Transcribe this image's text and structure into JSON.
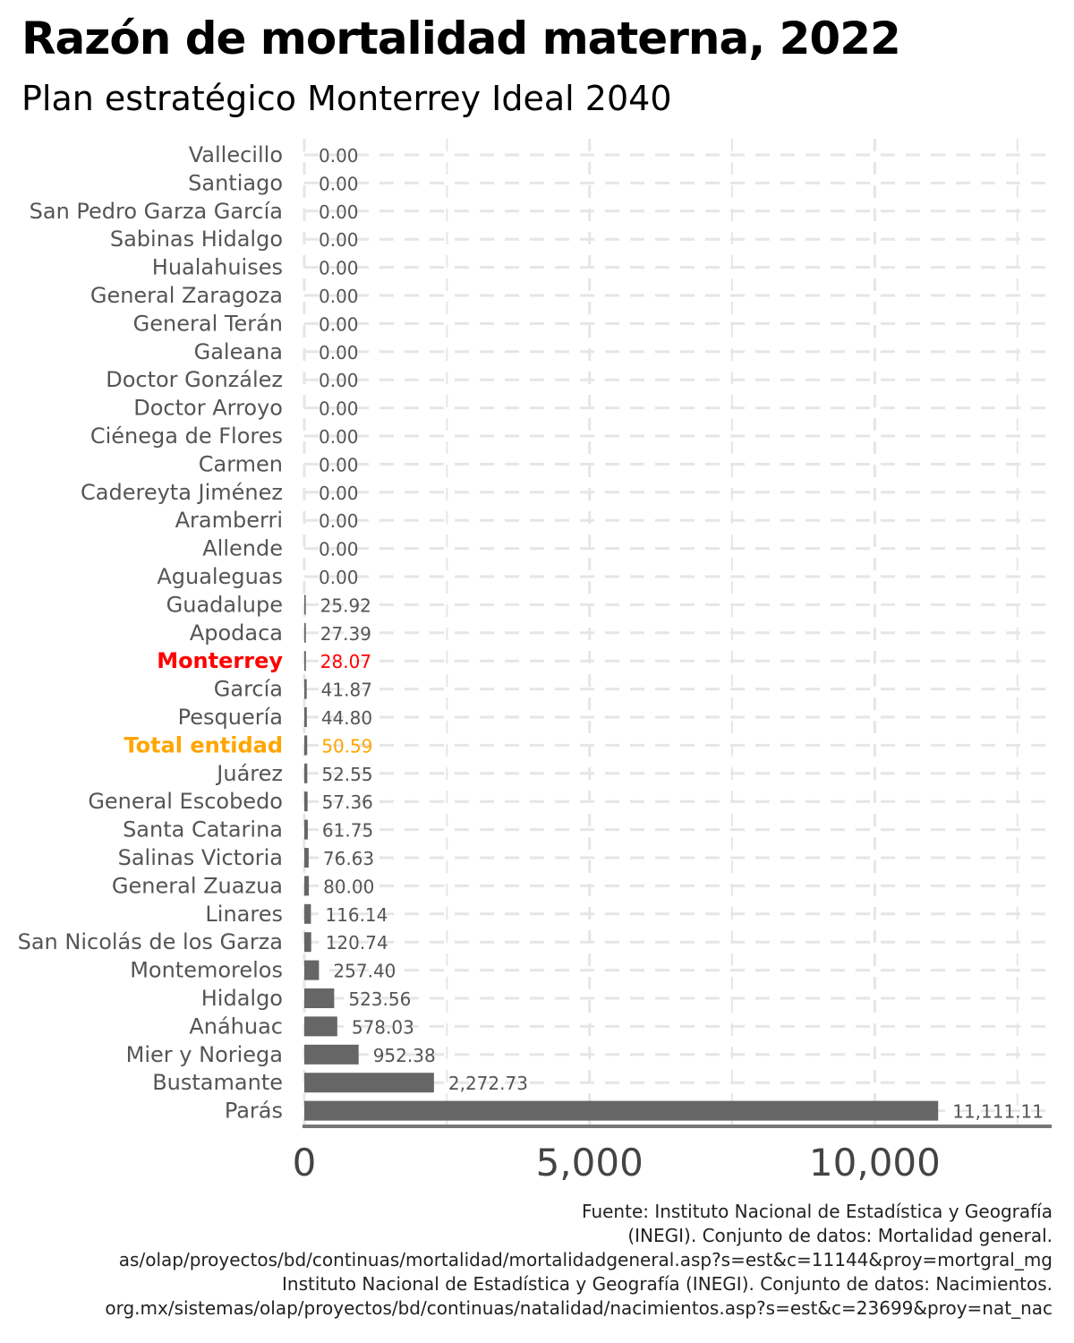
{
  "header": {
    "title": "Razón de mortalidad materna, 2022",
    "subtitle": "Plan estratégico Monterrey Ideal 2040"
  },
  "source_lines": [
    "Fuente: Instituto Nacional de Estadística y Geografía",
    "(INEGI). Conjunto de datos: Mortalidad general.",
    "as/olap/proyectos/bd/continuas/mortalidad/mortalidadgeneral.asp?s=est&c=11144&proy=mortgral_mg",
    "Instituto Nacional de Estadística y Geografía (INEGI). Conjunto de datos: Nacimientos.",
    "org.mx/sistemas/olap/proyectos/bd/continuas/natalidad/nacimientos.asp?s=est&c=23699&proy=nat_nac"
  ],
  "chart_data": {
    "type": "bar",
    "orientation": "horizontal",
    "title": "Razón de mortalidad materna, 2022",
    "subtitle": "Plan estratégico Monterrey Ideal 2040",
    "xlim": [
      0,
      13100
    ],
    "x_ticks": [
      0,
      5000,
      10000
    ],
    "x_tick_labels": [
      "0",
      "5,000",
      "10,000"
    ],
    "grid": "dashed",
    "colors": {
      "bar": "#666666",
      "highlight_monterrey": "#ff0000",
      "highlight_total": "#ffa500",
      "label": "#555555",
      "grid": "#e6e6e6"
    },
    "categories": [
      "Vallecillo",
      "Santiago",
      "San Pedro Garza García",
      "Sabinas Hidalgo",
      "Hualahuises",
      "General Zaragoza",
      "General Terán",
      "Galeana",
      "Doctor González",
      "Doctor Arroyo",
      "Ciénega de Flores",
      "Carmen",
      "Cadereyta Jiménez",
      "Aramberri",
      "Allende",
      "Agualeguas",
      "Guadalupe",
      "Apodaca",
      "Monterrey",
      "García",
      "Pesquería",
      "Total entidad",
      "Juárez",
      "General Escobedo",
      "Santa Catarina",
      "Salinas Victoria",
      "General Zuazua",
      "Linares",
      "San Nicolás de los Garza",
      "Montemorelos",
      "Hidalgo",
      "Anáhuac",
      "Mier y Noriega",
      "Bustamante",
      "Parás"
    ],
    "values": [
      0,
      0,
      0,
      0,
      0,
      0,
      0,
      0,
      0,
      0,
      0,
      0,
      0,
      0,
      0,
      0,
      25.92,
      27.39,
      28.07,
      41.87,
      44.8,
      50.59,
      52.55,
      57.36,
      61.75,
      76.63,
      80.0,
      116.14,
      120.74,
      257.4,
      523.56,
      578.03,
      952.38,
      2272.73,
      11111.11
    ],
    "value_labels": [
      "0.00",
      "0.00",
      "0.00",
      "0.00",
      "0.00",
      "0.00",
      "0.00",
      "0.00",
      "0.00",
      "0.00",
      "0.00",
      "0.00",
      "0.00",
      "0.00",
      "0.00",
      "0.00",
      "25.92",
      "27.39",
      "28.07",
      "41.87",
      "44.80",
      "50.59",
      "52.55",
      "57.36",
      "61.75",
      "76.63",
      "80.00",
      "116.14",
      "120.74",
      "257.40",
      "523.56",
      "578.03",
      "952.38",
      "2,272.73",
      "11,111.11"
    ],
    "highlights": {
      "Monterrey": "red",
      "Total entidad": "orange"
    }
  }
}
